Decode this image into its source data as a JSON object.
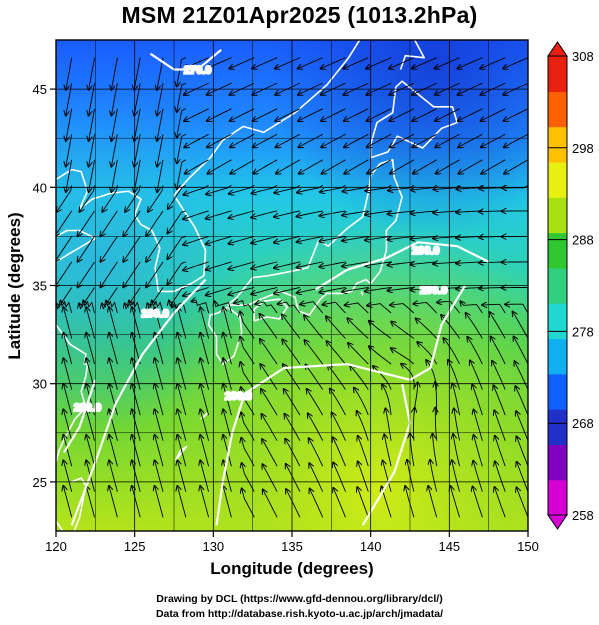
{
  "title": "MSM 21Z01Apr2025 (1013.2hPa)",
  "axes": {
    "xlabel": "Longitude (degrees)",
    "ylabel": "Latitude  (degrees)",
    "xticks": [
      120,
      125,
      130,
      135,
      140,
      145,
      150
    ],
    "yticks": [
      25,
      30,
      35,
      40,
      45
    ],
    "xlim": [
      120,
      150
    ],
    "ylim": [
      22.5,
      47.5
    ]
  },
  "colorbar": {
    "ticks": [
      258,
      268,
      278,
      288,
      298,
      308
    ],
    "range": [
      258,
      308
    ],
    "colors": [
      "#d400d4",
      "#8000c0",
      "#2030c8",
      "#1060ff",
      "#10b0f0",
      "#20d8d0",
      "#30d080",
      "#30c830",
      "#a8e010",
      "#e8f010",
      "#ffc000",
      "#ff6000",
      "#e82010"
    ]
  },
  "contours": [
    {
      "label": "290.0"
    },
    {
      "label": "290.0"
    },
    {
      "label": "280.0"
    },
    {
      "label": "290.0"
    },
    {
      "label": "290.0"
    },
    {
      "label": "270.0"
    }
  ],
  "footer": {
    "line1": "Drawing by DCL (https://www.gfd-dennou.org/library/dcl/)",
    "line2": "Data from http://database.rish.kyoto-u.ac.jp/arch/jmadata/"
  }
}
